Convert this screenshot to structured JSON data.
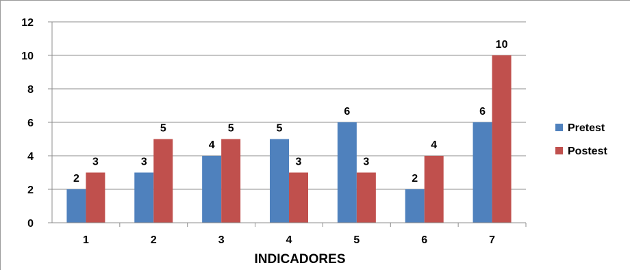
{
  "chart_data": {
    "type": "bar",
    "categories": [
      "1",
      "2",
      "3",
      "4",
      "5",
      "6",
      "7"
    ],
    "series": [
      {
        "name": "Pretest",
        "values": [
          2,
          3,
          4,
          5,
          6,
          2,
          6
        ],
        "color": "#4f81bd"
      },
      {
        "name": "Postest",
        "values": [
          3,
          5,
          5,
          3,
          3,
          4,
          10
        ],
        "color": "#c0504d"
      }
    ],
    "xlabel": "INDICADORES",
    "ylabel": "",
    "ylim": [
      0,
      12
    ],
    "yticks": [
      "0",
      "2",
      "4",
      "6",
      "8",
      "10",
      "12"
    ],
    "grid": true,
    "legend": "right",
    "data_labels": true
  }
}
